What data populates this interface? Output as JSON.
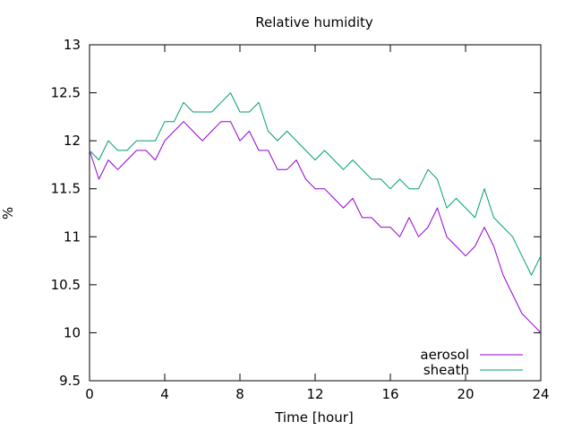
{
  "chart_data": {
    "type": "line",
    "title": "Relative humidity",
    "xlabel": "Time [hour]",
    "ylabel": "%",
    "xlim": [
      0,
      24
    ],
    "ylim": [
      9.5,
      13
    ],
    "xticks": [
      0,
      4,
      8,
      12,
      16,
      20,
      24
    ],
    "yticks": [
      9.5,
      10,
      10.5,
      11,
      11.5,
      12,
      12.5,
      13
    ],
    "grid": false,
    "legend_position": "bottom-right",
    "series": [
      {
        "name": "aerosol",
        "color": "#9400d3",
        "x": [
          0,
          0.5,
          1,
          1.5,
          2,
          2.5,
          3,
          3.5,
          4,
          4.5,
          5,
          5.5,
          6,
          6.5,
          7,
          7.5,
          8,
          8.5,
          9,
          9.5,
          10,
          10.5,
          11,
          11.5,
          12,
          12.5,
          13,
          13.5,
          14,
          14.5,
          15,
          15.5,
          16,
          16.5,
          17,
          17.5,
          18,
          18.5,
          19,
          19.5,
          20,
          20.5,
          21,
          21.5,
          22,
          22.5,
          23,
          23.5,
          24
        ],
        "y": [
          11.9,
          11.6,
          11.8,
          11.7,
          11.8,
          11.9,
          11.9,
          11.8,
          12.0,
          12.1,
          12.2,
          12.1,
          12.0,
          12.1,
          12.2,
          12.2,
          12.0,
          12.1,
          11.9,
          11.9,
          11.7,
          11.7,
          11.8,
          11.6,
          11.5,
          11.5,
          11.4,
          11.3,
          11.4,
          11.2,
          11.2,
          11.1,
          11.1,
          11.0,
          11.2,
          11.0,
          11.1,
          11.3,
          11.0,
          10.9,
          10.8,
          10.9,
          11.1,
          10.9,
          10.6,
          10.4,
          10.2,
          10.1,
          10.0
        ]
      },
      {
        "name": "sheath",
        "color": "#009e73",
        "x": [
          0,
          0.5,
          1,
          1.5,
          2,
          2.5,
          3,
          3.5,
          4,
          4.5,
          5,
          5.5,
          6,
          6.5,
          7,
          7.5,
          8,
          8.5,
          9,
          9.5,
          10,
          10.5,
          11,
          11.5,
          12,
          12.5,
          13,
          13.5,
          14,
          14.5,
          15,
          15.5,
          16,
          16.5,
          17,
          17.5,
          18,
          18.5,
          19,
          19.5,
          20,
          20.5,
          21,
          21.5,
          22,
          22.5,
          23,
          23.5,
          24
        ],
        "y": [
          11.9,
          11.8,
          12.0,
          11.9,
          11.9,
          12.0,
          12.0,
          12.0,
          12.2,
          12.2,
          12.4,
          12.3,
          12.3,
          12.3,
          12.4,
          12.5,
          12.3,
          12.3,
          12.4,
          12.1,
          12.0,
          12.1,
          12.0,
          11.9,
          11.8,
          11.9,
          11.8,
          11.7,
          11.8,
          11.7,
          11.6,
          11.6,
          11.5,
          11.6,
          11.5,
          11.5,
          11.7,
          11.6,
          11.3,
          11.4,
          11.3,
          11.2,
          11.5,
          11.2,
          11.1,
          11.0,
          10.8,
          10.6,
          10.8
        ]
      }
    ]
  }
}
